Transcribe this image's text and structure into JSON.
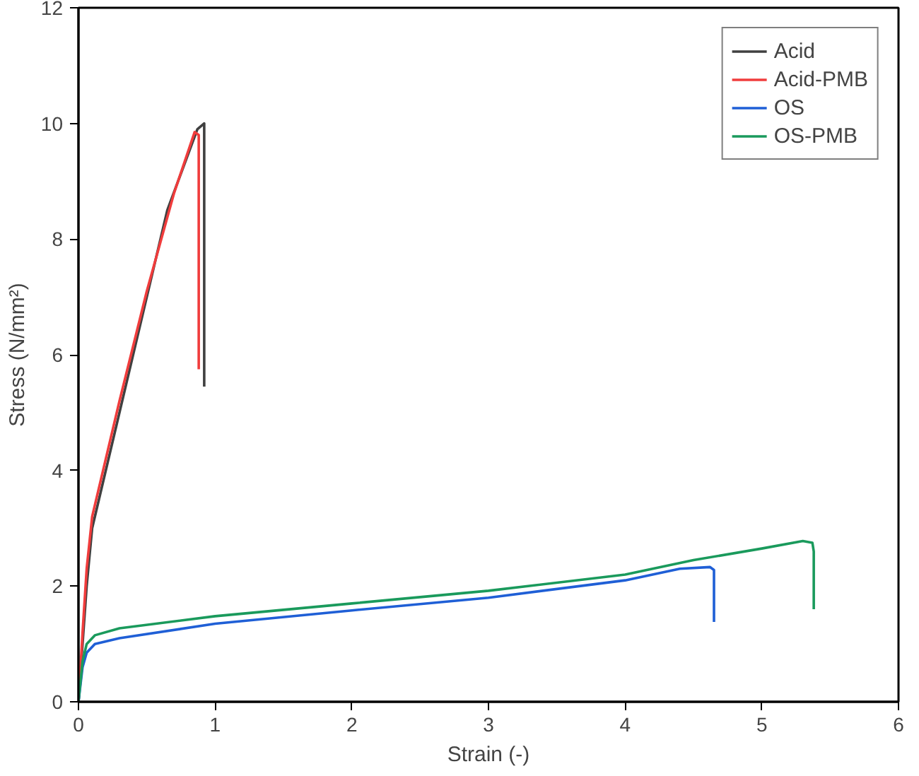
{
  "chart_data": {
    "type": "line",
    "xlabel": "Strain (-)",
    "ylabel": "Stress (N/mm²)",
    "xlim": [
      0,
      6
    ],
    "ylim": [
      0,
      12
    ],
    "xticks": [
      0,
      1,
      2,
      3,
      4,
      5,
      6
    ],
    "yticks": [
      0,
      2,
      4,
      6,
      8,
      10,
      12
    ],
    "grid": false,
    "legend": "top right",
    "line_style": "solid",
    "series": [
      {
        "name": "Acid",
        "color": "#404040",
        "x": [
          0,
          0.03,
          0.06,
          0.1,
          0.2,
          0.35,
          0.5,
          0.65,
          0.87,
          0.92,
          0.92
        ],
        "values": [
          0,
          1,
          2,
          3,
          4,
          5.5,
          7,
          8.5,
          9.9,
          10.0,
          5.45
        ]
      },
      {
        "name": "Acid-PMB",
        "color": "#f03c3c",
        "x": [
          0,
          0.03,
          0.06,
          0.1,
          0.3,
          0.5,
          0.7,
          0.85,
          0.88,
          0.88
        ],
        "values": [
          0,
          1.2,
          2.3,
          3.2,
          5.2,
          7.1,
          8.8,
          9.85,
          9.8,
          5.75
        ]
      },
      {
        "name": "OS",
        "color": "#1f5fd6",
        "x": [
          0,
          0.03,
          0.06,
          0.12,
          0.3,
          1,
          2,
          3,
          4,
          4.4,
          4.62,
          4.65,
          4.65
        ],
        "values": [
          0,
          0.6,
          0.85,
          1.0,
          1.1,
          1.35,
          1.58,
          1.8,
          2.1,
          2.3,
          2.33,
          2.28,
          1.38
        ]
      },
      {
        "name": "OS-PMB",
        "color": "#1a9a5c",
        "x": [
          0,
          0.03,
          0.06,
          0.12,
          0.3,
          1,
          2,
          3,
          4,
          4.5,
          5,
          5.3,
          5.37,
          5.38,
          5.38
        ],
        "values": [
          0,
          0.7,
          1.0,
          1.15,
          1.27,
          1.48,
          1.7,
          1.92,
          2.2,
          2.45,
          2.65,
          2.78,
          2.75,
          2.6,
          1.6
        ]
      }
    ]
  }
}
